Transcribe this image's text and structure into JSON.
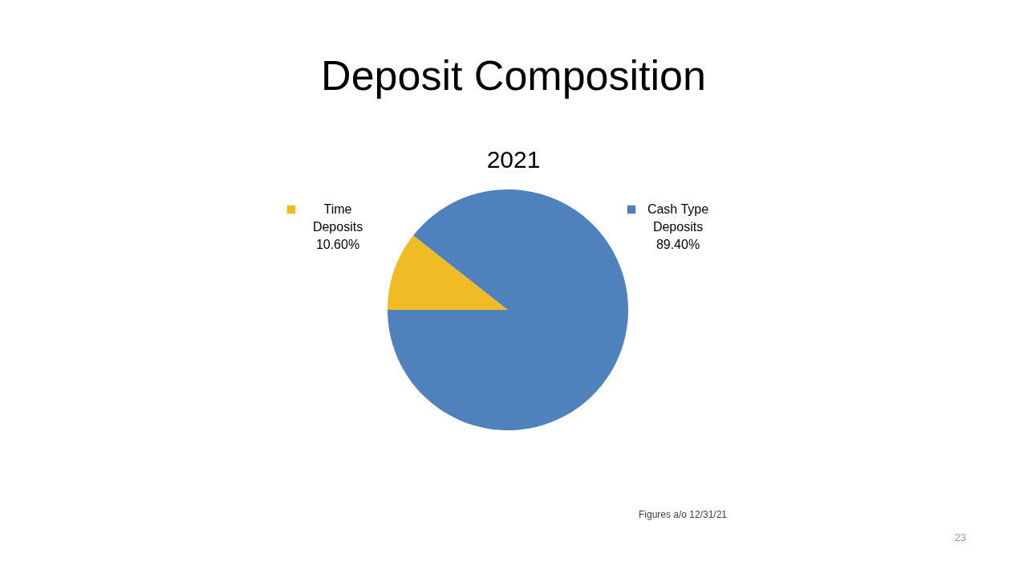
{
  "chart_data": {
    "type": "pie",
    "title": "Deposit Composition",
    "subtitle": "2021",
    "categories": [
      "Time Deposits",
      "Cash Type Deposits"
    ],
    "values": [
      10.6,
      89.4
    ],
    "colors": [
      "#f0bb24",
      "#4f81bd"
    ],
    "value_labels": [
      "10.60%",
      "89.40%"
    ],
    "legend": "top",
    "annotations": [
      "Figures a/o 12/31/21",
      "23"
    ]
  }
}
